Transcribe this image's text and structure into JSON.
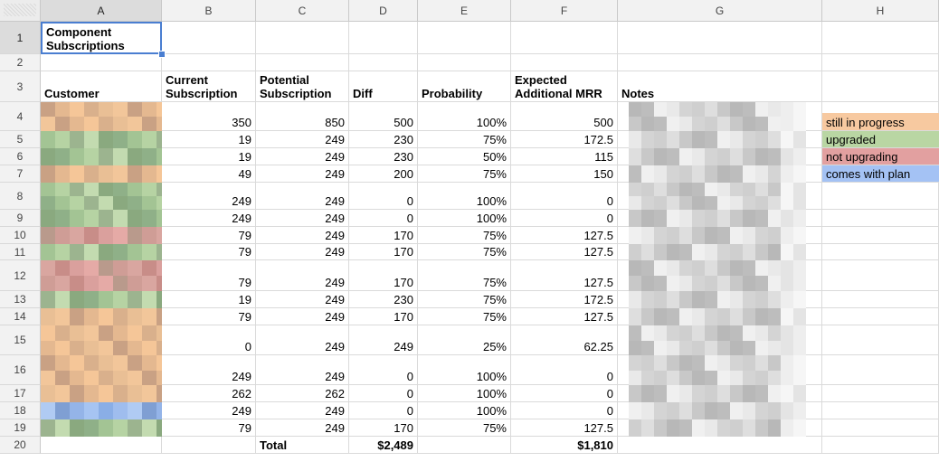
{
  "columns": [
    "A",
    "B",
    "C",
    "D",
    "E",
    "F",
    "G",
    "H"
  ],
  "rows": [
    "1",
    "2",
    "3",
    "4",
    "5",
    "6",
    "7",
    "8",
    "9",
    "10",
    "11",
    "12",
    "13",
    "14",
    "15",
    "16",
    "17",
    "18",
    "19",
    "20"
  ],
  "title": "Component Subscriptions",
  "headers": {
    "customer": "Customer",
    "current": "Current Subscription",
    "potential": "Potential Subscription",
    "diff": "Diff",
    "probability": "Probability",
    "expected": "Expected Additional MRR",
    "notes": "Notes"
  },
  "data_rows": [
    {
      "row": "4",
      "current": "350",
      "potential": "850",
      "diff": "500",
      "probability": "100%",
      "expected": "500",
      "status": "orange"
    },
    {
      "row": "5",
      "current": "19",
      "potential": "249",
      "diff": "230",
      "probability": "75%",
      "expected": "172.5",
      "status": "green"
    },
    {
      "row": "6",
      "current": "19",
      "potential": "249",
      "diff": "230",
      "probability": "50%",
      "expected": "115",
      "status": "green"
    },
    {
      "row": "7",
      "current": "49",
      "potential": "249",
      "diff": "200",
      "probability": "75%",
      "expected": "150",
      "status": "orange"
    },
    {
      "row": "8",
      "current": "249",
      "potential": "249",
      "diff": "0",
      "probability": "100%",
      "expected": "0",
      "status": "green"
    },
    {
      "row": "9",
      "current": "249",
      "potential": "249",
      "diff": "0",
      "probability": "100%",
      "expected": "0",
      "status": "green"
    },
    {
      "row": "10",
      "current": "79",
      "potential": "249",
      "diff": "170",
      "probability": "75%",
      "expected": "127.5",
      "status": "red"
    },
    {
      "row": "11",
      "current": "79",
      "potential": "249",
      "diff": "170",
      "probability": "75%",
      "expected": "127.5",
      "status": "green"
    },
    {
      "row": "12",
      "current": "79",
      "potential": "249",
      "diff": "170",
      "probability": "75%",
      "expected": "127.5",
      "status": "red"
    },
    {
      "row": "13",
      "current": "19",
      "potential": "249",
      "diff": "230",
      "probability": "75%",
      "expected": "172.5",
      "status": "green"
    },
    {
      "row": "14",
      "current": "79",
      "potential": "249",
      "diff": "170",
      "probability": "75%",
      "expected": "127.5",
      "status": "orange"
    },
    {
      "row": "15",
      "current": "0",
      "potential": "249",
      "diff": "249",
      "probability": "25%",
      "expected": "62.25",
      "status": "orange"
    },
    {
      "row": "16",
      "current": "249",
      "potential": "249",
      "diff": "0",
      "probability": "100%",
      "expected": "0",
      "status": "orange"
    },
    {
      "row": "17",
      "current": "262",
      "potential": "262",
      "diff": "0",
      "probability": "100%",
      "expected": "0",
      "status": "orange"
    },
    {
      "row": "18",
      "current": "249",
      "potential": "249",
      "diff": "0",
      "probability": "100%",
      "expected": "0",
      "status": "blue"
    },
    {
      "row": "19",
      "current": "79",
      "potential": "249",
      "diff": "170",
      "probability": "75%",
      "expected": "127.5",
      "status": "green"
    }
  ],
  "totals": {
    "label": "Total",
    "diff": "$2,489",
    "expected": "$1,810"
  },
  "legend": [
    {
      "label": "still in progress",
      "color": "#f7c9a0"
    },
    {
      "label": "upgraded",
      "color": "#b9d6a3"
    },
    {
      "label": "not upgrading",
      "color": "#e2a0a0"
    },
    {
      "label": "comes with plan",
      "color": "#a4c2f4"
    }
  ],
  "status_colors": {
    "orange": "#f5c496",
    "green": "#b5d1a0",
    "red": "#dea3a0",
    "blue": "#a6c4ef"
  }
}
